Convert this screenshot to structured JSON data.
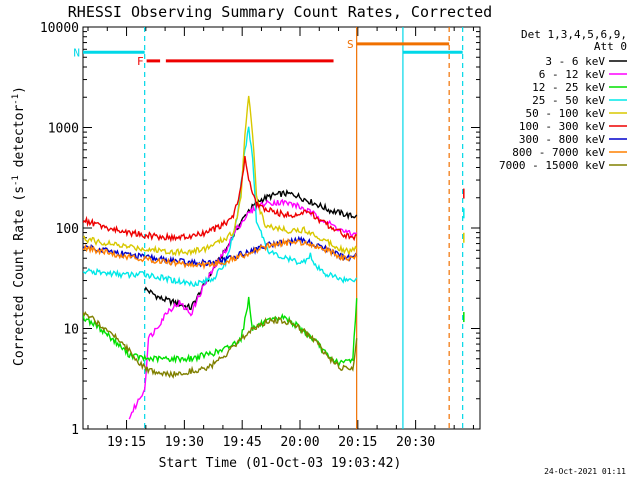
{
  "chart_data": {
    "type": "line",
    "title": "RHESSI Observing Summary Count Rates, Corrected",
    "xlabel": "Start Time (01-Oct-03 19:03:42)",
    "ylabel": "Corrected Count Rate (s",
    "ylabel_exp1": "-1",
    "ylabel_mid": " detector",
    "ylabel_exp2": "-1",
    "ylabel_end": ")",
    "y_scale": "log",
    "ylim": [
      1,
      10000
    ],
    "xlim_minutes": [
      0,
      103
    ],
    "x_ticks": [
      {
        "label": "19:15",
        "minute": 11.3
      },
      {
        "label": "19:30",
        "minute": 26.3
      },
      {
        "label": "19:45",
        "minute": 41.3
      },
      {
        "label": "20:00",
        "minute": 56.3
      },
      {
        "label": "20:15",
        "minute": 71.3
      },
      {
        "label": "20:30",
        "minute": 86.3
      }
    ],
    "y_ticks": [
      {
        "label": "1",
        "value": 1
      },
      {
        "label": "10",
        "value": 10
      },
      {
        "label": "100",
        "value": 100
      },
      {
        "label": "1000",
        "value": 1000
      },
      {
        "label": "10000",
        "value": 10000
      }
    ],
    "legend_header": [
      "Det 1,3,4,5,6,9,",
      "Att 0"
    ],
    "legend_position": "top-right",
    "timestamp": "24-Oct-2021 01:11",
    "flags": [
      {
        "label": "N",
        "color": "#00d8e8",
        "y": 5600,
        "segments": [
          [
            0,
            16
          ],
          [
            83,
            98.5
          ]
        ]
      },
      {
        "label": "F",
        "color": "#ee0000",
        "y": 4600,
        "segments": [
          [
            16.5,
            20
          ],
          [
            21.5,
            65
          ]
        ]
      },
      {
        "label": "S",
        "color": "#f07000",
        "y": 6800,
        "segments": [
          [
            71,
            95
          ]
        ]
      }
    ],
    "vlines": [
      {
        "minute": 16,
        "color": "#00d8e8",
        "dashed": true
      },
      {
        "minute": 71,
        "color": "#f07000",
        "dashed": false
      },
      {
        "minute": 83,
        "color": "#00d8e8",
        "dashed": false
      },
      {
        "minute": 95,
        "color": "#f07000",
        "dashed": true
      },
      {
        "minute": 98.5,
        "color": "#00d8e8",
        "dashed": true
      }
    ],
    "series": [
      {
        "name": "3 - 6 keV",
        "color": "#000000",
        "points": [
          [
            16,
            25
          ],
          [
            20,
            20
          ],
          [
            24,
            18
          ],
          [
            28,
            16
          ],
          [
            31,
            25
          ],
          [
            34,
            40
          ],
          [
            37,
            60
          ],
          [
            40,
            100
          ],
          [
            43,
            150
          ],
          [
            46,
            190
          ],
          [
            49,
            210
          ],
          [
            52,
            220
          ],
          [
            55,
            215
          ],
          [
            58,
            190
          ],
          [
            61,
            170
          ],
          [
            64,
            150
          ],
          [
            67,
            140
          ],
          [
            70,
            130
          ],
          [
            71,
            135
          ]
        ]
      },
      {
        "name": "6 - 12 keV",
        "color": "#ff00ff",
        "points": [
          [
            12,
            1.3
          ],
          [
            14,
            1.8
          ],
          [
            16,
            2.5
          ],
          [
            17,
            8
          ],
          [
            19,
            10
          ],
          [
            22,
            15
          ],
          [
            25,
            18
          ],
          [
            28,
            14
          ],
          [
            31,
            25
          ],
          [
            34,
            40
          ],
          [
            37,
            60
          ],
          [
            40,
            100
          ],
          [
            43,
            140
          ],
          [
            46,
            170
          ],
          [
            49,
            180
          ],
          [
            52,
            180
          ],
          [
            55,
            170
          ],
          [
            58,
            150
          ],
          [
            61,
            130
          ],
          [
            64,
            110
          ],
          [
            67,
            95
          ],
          [
            70,
            85
          ],
          [
            71,
            90
          ]
        ]
      },
      {
        "name": "12 - 25 keV",
        "color": "#00e000",
        "points": [
          [
            0,
            13
          ],
          [
            3,
            11
          ],
          [
            6,
            9
          ],
          [
            9,
            7
          ],
          [
            12,
            5.5
          ],
          [
            16,
            5
          ],
          [
            20,
            5
          ],
          [
            24,
            5
          ],
          [
            28,
            5
          ],
          [
            32,
            5.5
          ],
          [
            36,
            6
          ],
          [
            39,
            7
          ],
          [
            41,
            8
          ],
          [
            42,
            12
          ],
          [
            43,
            20
          ],
          [
            44,
            10
          ],
          [
            46,
            11
          ],
          [
            49,
            12
          ],
          [
            52,
            13
          ],
          [
            55,
            11
          ],
          [
            58,
            9
          ],
          [
            61,
            7
          ],
          [
            64,
            5
          ],
          [
            67,
            4.5
          ],
          [
            70,
            5
          ],
          [
            71,
            20
          ]
        ]
      },
      {
        "name": "25 - 50 keV",
        "color": "#00e8e8",
        "points": [
          [
            0,
            37
          ],
          [
            4,
            36
          ],
          [
            8,
            35
          ],
          [
            12,
            34
          ],
          [
            16,
            35
          ],
          [
            20,
            32
          ],
          [
            24,
            30
          ],
          [
            28,
            28
          ],
          [
            31,
            29
          ],
          [
            34,
            32
          ],
          [
            37,
            45
          ],
          [
            40,
            120
          ],
          [
            42,
            600
          ],
          [
            43,
            1000
          ],
          [
            44,
            500
          ],
          [
            45,
            120
          ],
          [
            48,
            60
          ],
          [
            51,
            52
          ],
          [
            54,
            48
          ],
          [
            57,
            45
          ],
          [
            59,
            55
          ],
          [
            60,
            42
          ],
          [
            63,
            35
          ],
          [
            66,
            32
          ],
          [
            69,
            30
          ],
          [
            71,
            32
          ]
        ]
      },
      {
        "name": "50 - 100 keV",
        "color": "#d8c800",
        "points": [
          [
            0,
            78
          ],
          [
            4,
            73
          ],
          [
            8,
            68
          ],
          [
            12,
            65
          ],
          [
            16,
            62
          ],
          [
            20,
            60
          ],
          [
            24,
            58
          ],
          [
            28,
            58
          ],
          [
            32,
            63
          ],
          [
            36,
            75
          ],
          [
            39,
            90
          ],
          [
            41,
            200
          ],
          [
            42,
            900
          ],
          [
            43,
            2100
          ],
          [
            44,
            900
          ],
          [
            45,
            200
          ],
          [
            47,
            110
          ],
          [
            50,
            100
          ],
          [
            53,
            95
          ],
          [
            56,
            95
          ],
          [
            58,
            95
          ],
          [
            60,
            85
          ],
          [
            63,
            75
          ],
          [
            66,
            65
          ],
          [
            69,
            58
          ],
          [
            71,
            62
          ]
        ]
      },
      {
        "name": "100 - 300 keV",
        "color": "#ee0000",
        "points": [
          [
            0,
            120
          ],
          [
            3,
            110
          ],
          [
            6,
            100
          ],
          [
            9,
            95
          ],
          [
            12,
            90
          ],
          [
            16,
            85
          ],
          [
            20,
            82
          ],
          [
            24,
            80
          ],
          [
            28,
            82
          ],
          [
            32,
            90
          ],
          [
            36,
            105
          ],
          [
            39,
            130
          ],
          [
            41,
            250
          ],
          [
            42,
            500
          ],
          [
            43,
            300
          ],
          [
            45,
            170
          ],
          [
            48,
            150
          ],
          [
            51,
            140
          ],
          [
            54,
            135
          ],
          [
            57,
            140
          ],
          [
            59,
            145
          ],
          [
            61,
            120
          ],
          [
            64,
            105
          ],
          [
            67,
            90
          ],
          [
            70,
            78
          ],
          [
            71,
            85
          ]
        ]
      },
      {
        "name": "300 - 800 keV",
        "color": "#0000cc",
        "points": [
          [
            0,
            66
          ],
          [
            4,
            62
          ],
          [
            8,
            58
          ],
          [
            12,
            54
          ],
          [
            16,
            51
          ],
          [
            20,
            49
          ],
          [
            24,
            47
          ],
          [
            28,
            45
          ],
          [
            32,
            45
          ],
          [
            36,
            47
          ],
          [
            40,
            53
          ],
          [
            44,
            60
          ],
          [
            48,
            68
          ],
          [
            52,
            73
          ],
          [
            56,
            75
          ],
          [
            59,
            72
          ],
          [
            62,
            65
          ],
          [
            65,
            57
          ],
          [
            68,
            50
          ],
          [
            71,
            52
          ]
        ]
      },
      {
        "name": "800 - 7000 keV",
        "color": "#ff8000",
        "points": [
          [
            0,
            63
          ],
          [
            4,
            59
          ],
          [
            8,
            55
          ],
          [
            12,
            52
          ],
          [
            16,
            49
          ],
          [
            20,
            47
          ],
          [
            24,
            45
          ],
          [
            28,
            43
          ],
          [
            32,
            43
          ],
          [
            36,
            45
          ],
          [
            40,
            51
          ],
          [
            44,
            58
          ],
          [
            48,
            66
          ],
          [
            52,
            71
          ],
          [
            56,
            73
          ],
          [
            59,
            70
          ],
          [
            62,
            63
          ],
          [
            65,
            56
          ],
          [
            68,
            49
          ],
          [
            71,
            51
          ]
        ]
      },
      {
        "name": "7000 - 15000 keV",
        "color": "#808000",
        "points": [
          [
            0,
            14
          ],
          [
            3,
            12
          ],
          [
            6,
            10
          ],
          [
            9,
            8
          ],
          [
            12,
            6
          ],
          [
            16,
            4
          ],
          [
            20,
            3.5
          ],
          [
            24,
            3.5
          ],
          [
            28,
            3.8
          ],
          [
            32,
            4
          ],
          [
            36,
            5
          ],
          [
            40,
            7
          ],
          [
            44,
            10
          ],
          [
            48,
            12
          ],
          [
            52,
            12
          ],
          [
            55,
            11
          ],
          [
            58,
            9
          ],
          [
            61,
            7
          ],
          [
            64,
            5
          ],
          [
            67,
            4
          ],
          [
            70,
            4
          ],
          [
            71,
            8
          ]
        ]
      }
    ],
    "post_values": [
      {
        "series": "100 - 300 keV",
        "minute": 98.8,
        "value": 220
      },
      {
        "series": "25 - 50 keV",
        "minute": 98.8,
        "value": 140
      },
      {
        "series": "50 - 100 keV",
        "minute": 98.8,
        "value": 80
      },
      {
        "series": "12 - 25 keV",
        "minute": 98.8,
        "value": 13
      }
    ]
  }
}
